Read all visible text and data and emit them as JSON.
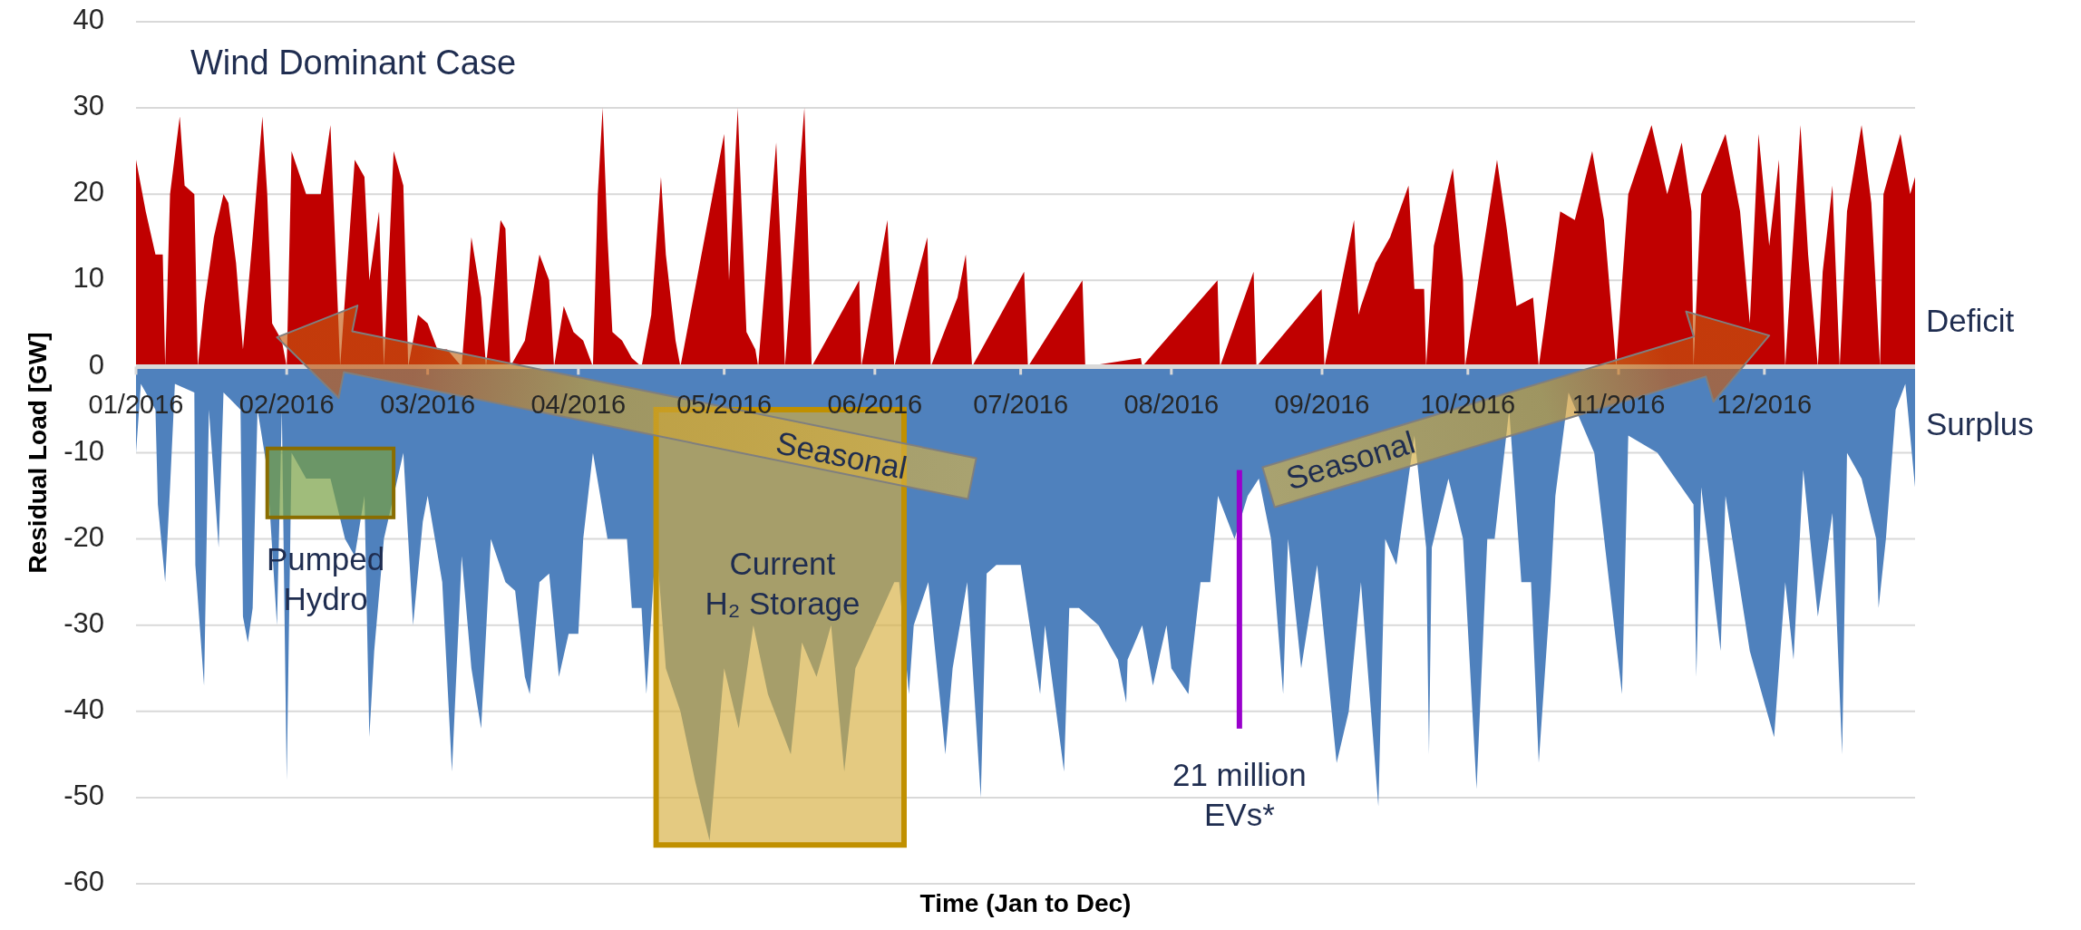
{
  "chart_data": {
    "type": "area",
    "title": "Wind Dominant Case",
    "xlabel": "Time (Jan to Dec)",
    "ylabel": "Residual Load [GW]",
    "xlim": [
      "2016-01-01",
      "2017-01-01"
    ],
    "ylim": [
      -60,
      40
    ],
    "xticks": [
      {
        "value": "2016-01-01",
        "label": "01/2016"
      },
      {
        "value": "2016-02-01",
        "label": "02/2016"
      },
      {
        "value": "2016-03-01",
        "label": "03/2016"
      },
      {
        "value": "2016-04-01",
        "label": "04/2016"
      },
      {
        "value": "2016-05-01",
        "label": "05/2016"
      },
      {
        "value": "2016-06-01",
        "label": "06/2016"
      },
      {
        "value": "2016-07-01",
        "label": "07/2016"
      },
      {
        "value": "2016-08-01",
        "label": "08/2016"
      },
      {
        "value": "2016-09-01",
        "label": "09/2016"
      },
      {
        "value": "2016-10-01",
        "label": "10/2016"
      },
      {
        "value": "2016-11-01",
        "label": "11/2016"
      },
      {
        "value": "2016-12-01",
        "label": "12/2016"
      }
    ],
    "yticks": [
      -60,
      -50,
      -40,
      -30,
      -20,
      -10,
      0,
      10,
      20,
      30,
      40
    ],
    "grid": "y",
    "series": [
      {
        "color": "#c00000",
        "x": [
          "2016-01-01",
          "2016-01-03",
          "2016-01-05",
          "2016-01-06T12:00",
          "2016-01-07",
          "2016-01-08",
          "2016-01-10",
          "2016-01-11",
          "2016-01-13",
          "2016-01-13T17:00",
          "2016-01-15",
          "2016-01-17",
          "2016-01-19",
          "2016-01-20",
          "2016-01-21T14:00",
          "2016-01-23",
          "2016-01-25",
          "2016-01-27",
          "2016-01-28",
          "2016-01-29",
          "2016-01-31",
          "2016-02-01",
          "2016-02-02",
          "2016-02-05",
          "2016-02-08",
          "2016-02-10",
          "2016-02-11",
          "2016-02-12",
          "2016-02-15",
          "2016-02-17",
          "2016-02-18",
          "2016-02-20",
          "2016-02-21",
          "2016-02-23",
          "2016-02-25",
          "2016-02-26",
          "2016-02-28",
          "2016-03-01",
          "2016-03-03",
          "2016-03-05",
          "2016-03-08",
          "2016-03-10",
          "2016-03-12",
          "2016-03-13",
          "2016-03-16",
          "2016-03-17",
          "2016-03-18",
          "2016-03-21",
          "2016-03-24",
          "2016-03-26",
          "2016-03-27",
          "2016-03-29",
          "2016-03-31",
          "2016-04-02",
          "2016-04-04",
          "2016-04-05",
          "2016-04-06",
          "2016-04-07",
          "2016-04-08",
          "2016-04-10",
          "2016-04-12",
          "2016-04-14",
          "2016-04-16",
          "2016-04-17",
          "2016-04-18",
          "2016-04-19",
          "2016-04-21",
          "2016-04-22",
          "2016-05-01",
          "2016-05-02",
          "2016-05-03T19:00",
          "2016-05-05T14:00",
          "2016-05-07T10:00",
          "2016-05-08",
          "2016-05-11T17:00",
          "2016-05-13",
          "2016-05-13T12:00",
          "2016-05-17T12:00",
          "2016-05-18T10:00",
          "2016-05-19",
          "2016-05-28T19:00",
          "2016-05-29T05:00",
          "2016-06-03T14:00",
          "2016-06-04T05:00",
          "2016-06-05",
          "2016-06-11T19:00",
          "2016-06-12T12:00",
          "2016-06-18",
          "2016-06-19T17:00",
          "2016-06-21",
          "2016-07-01T17:00",
          "2016-07-02T12:00",
          "2016-07-13T17:00",
          "2016-07-14T07:00",
          "2016-07-25T17:00",
          "2016-07-26",
          "2016-08-10T12:00",
          "2016-08-11",
          "2016-08-17T22:00",
          "2016-08-18T12:00",
          "2016-08-31T22:00",
          "2016-09-01T12:00",
          "2016-09-07T14:00",
          "2016-09-08T12:00",
          "2016-09-09",
          "2016-09-12",
          "2016-09-15",
          "2016-09-18T19:00",
          "2016-09-20",
          "2016-09-22",
          "2016-09-22T10:00",
          "2016-09-24",
          "2016-09-27T22:00",
          "2016-09-30",
          "2016-09-30T10:00",
          "2016-10-07",
          "2016-10-09",
          "2016-10-11",
          "2016-10-14T10:00",
          "2016-10-15T14:00",
          "2016-10-20",
          "2016-10-23",
          "2016-10-26T14:00",
          "2016-10-29",
          "2016-10-31T12:00",
          "2016-11-03",
          "2016-11-07T19:00",
          "2016-11-11",
          "2016-11-14",
          "2016-11-16",
          "2016-11-16T10:00",
          "2016-11-18",
          "2016-11-23",
          "2016-11-26",
          "2016-11-28",
          "2016-11-29T19:00",
          "2016-12-02",
          "2016-12-04",
          "2016-12-05T07:00",
          "2016-12-08T10:00",
          "2016-12-10",
          "2016-12-12",
          "2016-12-13",
          "2016-12-15",
          "2016-12-15T17:00",
          "2016-12-16T12:00",
          "2016-12-18",
          "2016-12-21",
          "2016-12-23",
          "2016-12-24T19:00",
          "2016-12-25T12:00",
          "2016-12-29",
          "2016-12-31",
          "2017-01-01"
        ],
        "values": [
          24,
          18,
          13,
          13,
          0,
          20,
          29,
          21,
          20,
          0,
          7,
          15,
          20,
          19,
          12,
          2,
          15,
          29,
          20,
          5,
          3,
          0,
          25,
          20,
          20,
          28,
          14,
          0,
          24,
          22,
          10,
          18,
          0,
          25,
          21,
          0,
          6,
          5,
          2,
          2,
          0,
          15,
          8,
          0,
          17,
          16,
          0,
          3,
          13,
          10,
          0,
          7,
          4,
          3,
          0,
          20,
          30,
          15,
          4,
          3,
          1,
          0,
          6,
          14,
          22,
          13,
          3,
          0,
          27,
          10,
          30,
          4,
          2,
          0,
          26,
          9,
          0,
          30,
          12,
          0,
          10,
          0,
          17,
          9,
          0,
          15,
          0,
          8,
          13,
          0,
          11,
          0,
          10,
          0,
          1,
          0,
          10,
          0,
          11,
          0,
          9,
          0,
          17,
          6,
          7,
          12,
          15,
          21,
          9,
          9,
          0,
          14,
          23,
          10,
          0,
          24,
          16,
          7,
          8,
          0,
          18,
          17,
          25,
          17,
          0,
          20,
          28,
          20,
          26,
          18,
          0,
          20,
          27,
          18,
          5,
          27,
          14,
          24,
          0,
          28,
          13,
          0,
          11,
          21,
          11,
          0,
          18,
          28,
          19,
          0,
          20,
          27,
          20,
          22
        ]
      },
      {
        "color": "#4f81bd",
        "x": [
          "2016-01-01",
          "2016-01-02",
          "2016-01-05",
          "2016-01-05T12:00",
          "2016-01-07",
          "2016-01-08",
          "2016-01-09",
          "2016-01-13",
          "2016-01-13T05:00",
          "2016-01-15",
          "2016-01-16",
          "2016-01-18",
          "2016-01-19",
          "2016-01-22T12:00",
          "2016-01-23",
          "2016-01-24",
          "2016-01-25",
          "2016-01-26",
          "2016-01-28",
          "2016-01-30",
          "2016-01-31",
          "2016-02-01",
          "2016-02-02",
          "2016-02-05",
          "2016-02-10",
          "2016-02-13",
          "2016-02-15",
          "2016-02-17",
          "2016-02-18",
          "2016-02-19",
          "2016-02-21",
          "2016-02-23",
          "2016-02-25",
          "2016-02-27",
          "2016-02-29",
          "2016-03-01",
          "2016-03-04",
          "2016-03-06",
          "2016-03-08",
          "2016-03-10",
          "2016-03-12",
          "2016-03-14",
          "2016-03-17",
          "2016-03-19",
          "2016-03-21",
          "2016-03-22",
          "2016-03-24",
          "2016-03-26",
          "2016-03-28",
          "2016-03-30",
          "2016-04-01",
          "2016-04-02",
          "2016-04-04",
          "2016-04-07",
          "2016-04-11",
          "2016-04-12",
          "2016-04-14",
          "2016-04-15",
          "2016-04-17",
          "2016-04-19",
          "2016-04-22",
          "2016-04-25",
          "2016-04-28",
          "2016-05-01",
          "2016-05-04",
          "2016-05-07",
          "2016-05-10",
          "2016-05-14T17:00",
          "2016-05-17",
          "2016-05-20",
          "2016-05-23",
          "2016-05-25T17:00",
          "2016-05-28",
          "2016-06-01",
          "2016-06-05",
          "2016-06-06",
          "2016-06-08",
          "2016-06-09",
          "2016-06-12",
          "2016-06-15",
          "2016-06-15T12:00",
          "2016-06-17",
          "2016-06-20",
          "2016-06-22T19:00",
          "2016-06-24",
          "2016-06-26",
          "2016-07-01",
          "2016-07-05",
          "2016-07-06",
          "2016-07-09T22:00",
          "2016-07-11",
          "2016-07-13",
          "2016-07-17",
          "2016-07-21",
          "2016-07-22T17:00",
          "2016-07-23",
          "2016-07-26",
          "2016-07-28T05:00",
          "2016-07-31",
          "2016-08-01",
          "2016-08-04T12:00",
          "2016-08-05",
          "2016-08-07",
          "2016-08-09",
          "2016-08-10T14:00",
          "2016-08-14",
          "2016-08-16T17:00",
          "2016-08-19",
          "2016-08-21T12:00",
          "2016-08-24",
          "2016-08-25",
          "2016-08-27T17:00",
          "2016-08-31",
          "2016-09-04",
          "2016-09-06T12:00",
          "2016-09-09",
          "2016-09-12T14:00",
          "2016-09-14",
          "2016-09-16T07:00",
          "2016-09-20",
          "2016-09-22T10:00",
          "2016-09-23",
          "2016-09-23T14:00",
          "2016-09-27",
          "2016-09-30",
          "2016-10-02T19:00",
          "2016-10-05",
          "2016-10-06T12:00",
          "2016-10-09T12:00",
          "2016-10-12",
          "2016-10-14",
          "2016-10-15T14:00",
          "2016-10-18",
          "2016-10-19",
          "2016-10-21T17:00",
          "2016-10-27",
          "2016-11-01T17:00",
          "2016-11-03",
          "2016-11-09",
          "2016-11-16T10:00",
          "2016-11-17",
          "2016-11-18",
          "2016-11-22",
          "2016-11-23",
          "2016-11-28",
          "2016-12-03",
          "2016-12-05T07:00",
          "2016-12-07",
          "2016-12-09",
          "2016-12-12",
          "2016-12-15",
          "2016-12-17",
          "2016-12-18",
          "2016-12-21",
          "2016-12-24",
          "2016-12-24T12:00",
          "2016-12-26",
          "2016-12-28",
          "2016-12-30",
          "2017-01-01"
        ],
        "values": [
          -10,
          -2,
          -5,
          -16,
          -25,
          -14,
          -2,
          -3,
          -23,
          -37,
          -5,
          -21,
          -3,
          -5,
          -29,
          -32,
          -28,
          -5,
          -12,
          -30,
          -5,
          -48,
          -10,
          -13,
          -13,
          -20,
          -22,
          -15,
          -43,
          -33,
          -20,
          -15,
          -10,
          -30,
          -18,
          -15,
          -25,
          -47,
          -22,
          -35,
          -42,
          -20,
          -25,
          -26,
          -36,
          -38,
          -25,
          -24,
          -36,
          -31,
          -31,
          -20,
          -10,
          -20,
          -20,
          -28,
          -28,
          -38,
          -20,
          -35,
          -40,
          -48,
          -55,
          -35,
          -42,
          -30,
          -38,
          -45,
          -32,
          -36,
          -30,
          -47,
          -35,
          -30,
          -25,
          -25,
          -38,
          -30,
          -25,
          -42,
          -45,
          -35,
          -25,
          -50,
          -24,
          -23,
          -23,
          -38,
          -30,
          -47,
          -28,
          -28,
          -30,
          -34,
          -39,
          -34,
          -30,
          -37,
          -30,
          -35,
          -38,
          -35,
          -25,
          -25,
          -15,
          -20,
          -15,
          -13,
          -20,
          -38,
          -20,
          -35,
          -23,
          -46,
          -40,
          -25,
          -51,
          -20,
          -23,
          -8,
          -21,
          -45,
          -21,
          -13,
          -20,
          -49,
          -20,
          -20,
          -5,
          -25,
          -25,
          -46,
          -26,
          -15,
          -3,
          -10,
          -38,
          -8,
          -10,
          -16,
          -36,
          -14,
          -33,
          -15,
          -33,
          -43,
          -25,
          -34,
          -12,
          -29,
          -17,
          -45,
          -10,
          -13,
          -20,
          -28,
          -20,
          -5,
          -2,
          -14
        ]
      }
    ],
    "annotations": [
      "Deficit",
      "Surplus",
      "Pumped\nHydro",
      "Current\nH₂ Storage",
      "21 million\nEVs*",
      "Seasonal",
      "Seasonal"
    ]
  }
}
